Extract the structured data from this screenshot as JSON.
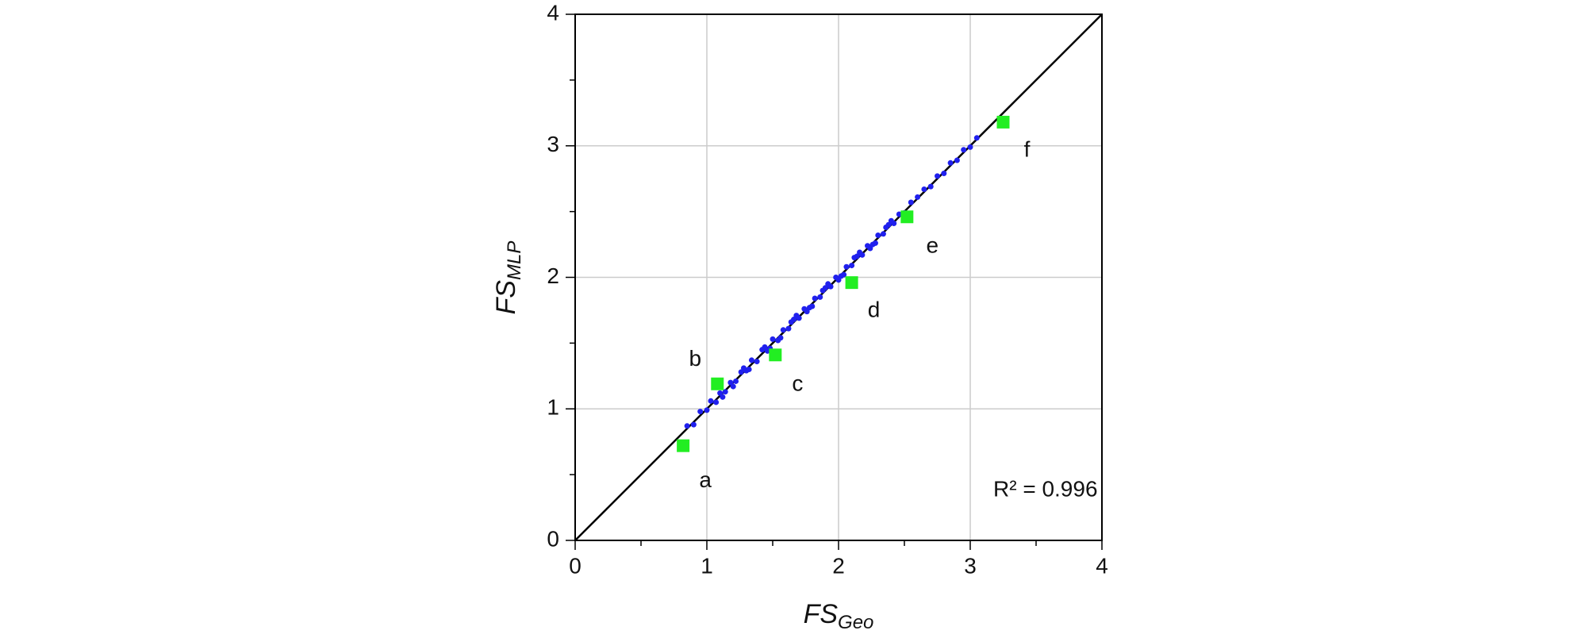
{
  "chart_data": {
    "type": "scatter",
    "x_label": {
      "main": "FS",
      "sub": "Geo"
    },
    "y_label": {
      "main": "FS",
      "sub": "MLP"
    },
    "annotation": "R² = 0.996",
    "xlim": [
      0,
      4
    ],
    "ylim": [
      0,
      4
    ],
    "xticks": [
      0,
      1,
      2,
      3,
      4
    ],
    "yticks": [
      0,
      1,
      2,
      3,
      4
    ],
    "xminorticks": [
      0.5,
      1.5,
      2.5,
      3.5
    ],
    "yminorticks": [
      0.5,
      1.5,
      2.5,
      3.5
    ],
    "grid": true,
    "reference_line": "y=x",
    "series": [
      {
        "color": "#2020ee",
        "marker": "circle",
        "x": [
          0.85,
          0.9,
          0.95,
          1.0,
          1.03,
          1.07,
          1.1,
          1.14,
          1.18,
          1.22,
          1.26,
          1.3,
          1.34,
          1.38,
          1.42,
          1.46,
          1.5,
          1.54,
          1.58,
          1.62,
          1.66,
          1.7,
          1.74,
          1.78,
          1.82,
          1.86,
          1.9,
          1.94,
          1.98,
          2.02,
          2.06,
          2.1,
          2.14,
          2.18,
          2.22,
          2.26,
          2.3,
          2.34,
          2.38,
          2.42,
          2.46,
          2.5,
          2.55,
          2.6,
          2.65,
          2.7,
          2.75,
          2.8,
          2.85,
          2.9,
          2.95,
          3.0,
          3.05,
          1.2,
          1.32,
          1.44,
          1.56,
          1.68,
          1.8,
          1.92,
          2.04,
          2.16,
          2.28,
          2.4,
          1.12,
          1.28,
          1.48,
          1.64,
          1.76,
          1.88,
          2.0,
          2.12,
          2.24,
          2.36
        ],
        "y": [
          0.87,
          0.88,
          0.98,
          0.99,
          1.06,
          1.05,
          1.12,
          1.13,
          1.2,
          1.21,
          1.28,
          1.29,
          1.37,
          1.36,
          1.45,
          1.44,
          1.53,
          1.52,
          1.6,
          1.61,
          1.68,
          1.69,
          1.76,
          1.77,
          1.84,
          1.85,
          1.92,
          1.93,
          2.0,
          2.01,
          2.08,
          2.09,
          2.16,
          2.17,
          2.24,
          2.25,
          2.32,
          2.33,
          2.4,
          2.41,
          2.48,
          2.49,
          2.57,
          2.61,
          2.67,
          2.69,
          2.77,
          2.79,
          2.87,
          2.89,
          2.97,
          2.99,
          3.06,
          1.17,
          1.3,
          1.47,
          1.54,
          1.71,
          1.78,
          1.95,
          2.02,
          2.19,
          2.26,
          2.43,
          1.09,
          1.31,
          1.46,
          1.66,
          1.74,
          1.9,
          1.98,
          2.15,
          2.22,
          2.38
        ]
      },
      {
        "color": "#22ee22",
        "marker": "square",
        "x": [
          0.82,
          1.08,
          1.52,
          2.1,
          2.52,
          3.25
        ],
        "y": [
          0.72,
          1.19,
          1.41,
          1.96,
          2.46,
          3.18
        ],
        "point_labels": [
          "a",
          "b",
          "c",
          "d",
          "e",
          "f"
        ]
      }
    ]
  }
}
